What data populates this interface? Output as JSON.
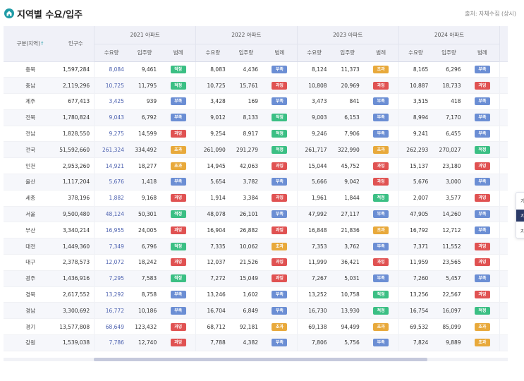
{
  "header": {
    "title": "지역별 수요/입주",
    "source": "출처: 자체수집 (상시)",
    "icon": "home-icon",
    "accent": "#1f9ba6"
  },
  "table": {
    "region_header": "구분(지역)",
    "sort_arrow": "↑",
    "population_header": "인구수",
    "years": [
      "2021 아파트",
      "2022 아파트",
      "2023 아파트",
      "2024 아파트"
    ],
    "sub_headers": [
      "수요량",
      "입주량",
      "범례"
    ],
    "badge_colors": {
      "적정": "#3bbf84",
      "부족": "#6b8ed4",
      "과잉": "#e05252",
      "초과": "#e8a93b"
    },
    "rows": [
      {
        "region": "충북",
        "population": "1,597,284",
        "years": [
          [
            "8,084",
            "9,461",
            "적정"
          ],
          [
            "8,083",
            "4,436",
            "부족"
          ],
          [
            "8,124",
            "11,373",
            "초과"
          ],
          [
            "8,165",
            "6,296",
            "부족"
          ]
        ]
      },
      {
        "region": "충남",
        "population": "2,119,296",
        "years": [
          [
            "10,725",
            "11,795",
            "적정"
          ],
          [
            "10,725",
            "15,761",
            "과잉"
          ],
          [
            "10,808",
            "20,969",
            "과잉"
          ],
          [
            "10,887",
            "18,733",
            "과잉"
          ]
        ]
      },
      {
        "region": "제주",
        "population": "677,413",
        "years": [
          [
            "3,425",
            "939",
            "부족"
          ],
          [
            "3,428",
            "169",
            "부족"
          ],
          [
            "3,473",
            "841",
            "부족"
          ],
          [
            "3,515",
            "418",
            "부족"
          ]
        ]
      },
      {
        "region": "전북",
        "population": "1,780,824",
        "years": [
          [
            "9,043",
            "6,792",
            "부족"
          ],
          [
            "9,012",
            "8,133",
            "적정"
          ],
          [
            "9,003",
            "6,153",
            "부족"
          ],
          [
            "8,994",
            "7,170",
            "부족"
          ]
        ]
      },
      {
        "region": "전남",
        "population": "1,828,550",
        "years": [
          [
            "9,275",
            "14,599",
            "과잉"
          ],
          [
            "9,254",
            "8,917",
            "적정"
          ],
          [
            "9,246",
            "7,906",
            "부족"
          ],
          [
            "9,241",
            "6,455",
            "부족"
          ]
        ]
      },
      {
        "region": "전국",
        "population": "51,592,660",
        "years": [
          [
            "261,324",
            "334,492",
            "초과"
          ],
          [
            "261,090",
            "291,279",
            "적정"
          ],
          [
            "261,717",
            "322,990",
            "초과"
          ],
          [
            "262,293",
            "270,027",
            "적정"
          ]
        ]
      },
      {
        "region": "인천",
        "population": "2,953,260",
        "years": [
          [
            "14,921",
            "18,277",
            "초과"
          ],
          [
            "14,945",
            "42,063",
            "과잉"
          ],
          [
            "15,044",
            "45,752",
            "과잉"
          ],
          [
            "15,137",
            "23,180",
            "과잉"
          ]
        ]
      },
      {
        "region": "울산",
        "population": "1,117,204",
        "years": [
          [
            "5,676",
            "1,418",
            "부족"
          ],
          [
            "5,654",
            "3,782",
            "부족"
          ],
          [
            "5,666",
            "9,042",
            "과잉"
          ],
          [
            "5,676",
            "3,000",
            "부족"
          ]
        ]
      },
      {
        "region": "세종",
        "population": "378,196",
        "years": [
          [
            "1,882",
            "9,168",
            "과잉"
          ],
          [
            "1,914",
            "3,384",
            "과잉"
          ],
          [
            "1,961",
            "1,844",
            "적정"
          ],
          [
            "2,007",
            "3,577",
            "과잉"
          ]
        ]
      },
      {
        "region": "서울",
        "population": "9,500,480",
        "years": [
          [
            "48,124",
            "50,301",
            "적정"
          ],
          [
            "48,078",
            "26,101",
            "부족"
          ],
          [
            "47,992",
            "27,117",
            "부족"
          ],
          [
            "47,905",
            "14,260",
            "부족"
          ]
        ]
      },
      {
        "region": "부산",
        "population": "3,340,214",
        "years": [
          [
            "16,955",
            "24,005",
            "과잉"
          ],
          [
            "16,904",
            "26,882",
            "과잉"
          ],
          [
            "16,848",
            "21,836",
            "초과"
          ],
          [
            "16,792",
            "12,712",
            "부족"
          ]
        ]
      },
      {
        "region": "대전",
        "population": "1,449,360",
        "years": [
          [
            "7,349",
            "6,796",
            "적정"
          ],
          [
            "7,335",
            "10,062",
            "초과"
          ],
          [
            "7,353",
            "3,762",
            "부족"
          ],
          [
            "7,371",
            "11,552",
            "과잉"
          ]
        ]
      },
      {
        "region": "대구",
        "population": "2,378,573",
        "years": [
          [
            "12,072",
            "18,242",
            "과잉"
          ],
          [
            "12,037",
            "21,526",
            "과잉"
          ],
          [
            "11,999",
            "36,421",
            "과잉"
          ],
          [
            "11,959",
            "23,565",
            "과잉"
          ]
        ]
      },
      {
        "region": "광주",
        "population": "1,436,916",
        "years": [
          [
            "7,295",
            "7,583",
            "적정"
          ],
          [
            "7,272",
            "15,049",
            "과잉"
          ],
          [
            "7,267",
            "5,031",
            "부족"
          ],
          [
            "7,260",
            "5,457",
            "부족"
          ]
        ]
      },
      {
        "region": "경북",
        "population": "2,617,552",
        "years": [
          [
            "13,292",
            "8,758",
            "부족"
          ],
          [
            "13,246",
            "1,602",
            "부족"
          ],
          [
            "13,252",
            "10,758",
            "적정"
          ],
          [
            "13,256",
            "22,567",
            "과잉"
          ]
        ]
      },
      {
        "region": "경남",
        "population": "3,300,692",
        "years": [
          [
            "16,772",
            "10,186",
            "부족"
          ],
          [
            "16,704",
            "6,849",
            "부족"
          ],
          [
            "16,730",
            "13,930",
            "적정"
          ],
          [
            "16,754",
            "16,097",
            "적정"
          ]
        ]
      },
      {
        "region": "경기",
        "population": "13,577,808",
        "years": [
          [
            "68,649",
            "123,432",
            "과잉"
          ],
          [
            "68,712",
            "92,181",
            "초과"
          ],
          [
            "69,138",
            "94,499",
            "초과"
          ],
          [
            "69,532",
            "85,099",
            "초과"
          ]
        ]
      },
      {
        "region": "강원",
        "population": "1,539,038",
        "years": [
          [
            "7,786",
            "12,740",
            "과잉"
          ],
          [
            "7,788",
            "4,382",
            "부족"
          ],
          [
            "7,806",
            "5,756",
            "부족"
          ],
          [
            "7,824",
            "9,889",
            "초과"
          ]
        ]
      }
    ]
  },
  "side_popup": {
    "items": [
      "가",
      "지",
      "지"
    ]
  }
}
